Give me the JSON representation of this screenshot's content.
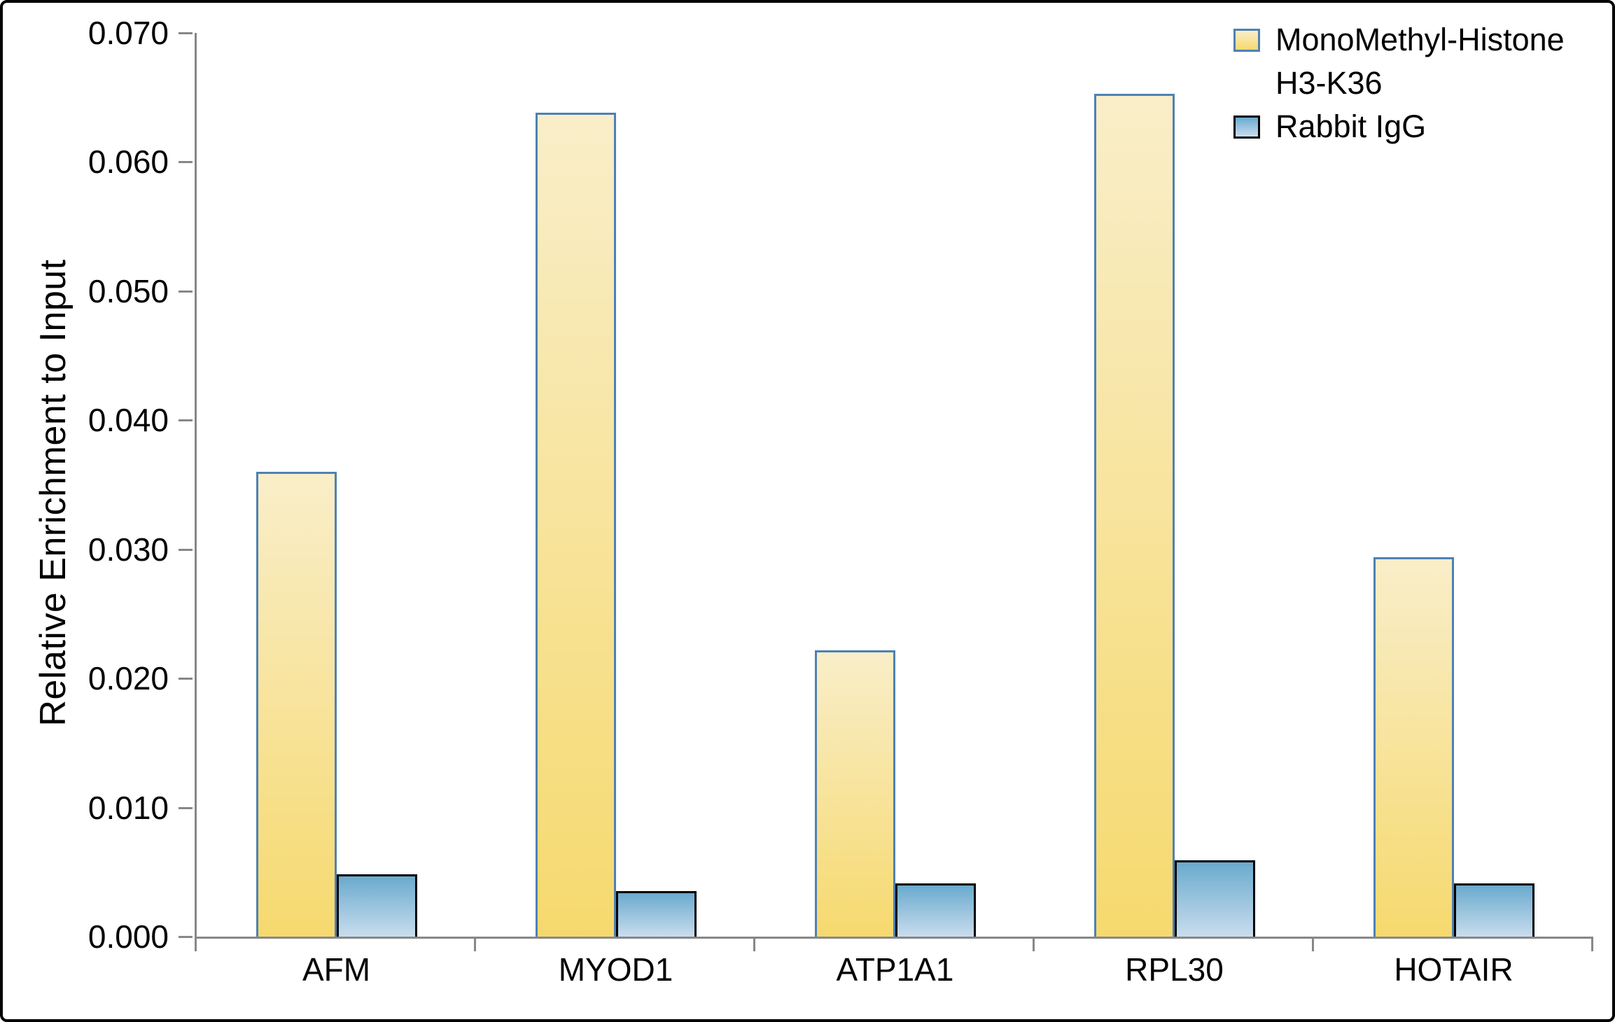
{
  "chart_data": {
    "type": "bar",
    "categories": [
      "AFM",
      "MYOD1",
      "ATP1A1",
      "RPL30",
      "HOTAIR"
    ],
    "series": [
      {
        "name": "MonoMethyl-Histone H3-K36",
        "values": [
          0.036,
          0.0638,
          0.0222,
          0.0653,
          0.0294
        ]
      },
      {
        "name": "Rabbit IgG",
        "values": [
          0.0048,
          0.0035,
          0.0041,
          0.0059,
          0.0041
        ]
      }
    ],
    "ylabel": "Relative Enrichment to Input",
    "xlabel": "",
    "ylim": [
      0,
      0.07
    ],
    "ytick_labels": [
      "0.000",
      "0.010",
      "0.020",
      "0.030",
      "0.040",
      "0.050",
      "0.060",
      "0.070"
    ],
    "grid": false,
    "legend_position": "top-right"
  },
  "legend": {
    "items": [
      {
        "lines": [
          "MonoMethyl-Histone",
          "H3-K36"
        ]
      },
      {
        "lines": [
          "Rabbit IgG"
        ]
      }
    ]
  },
  "colors": {
    "series1_fill_top": "#f9eec9",
    "series1_fill_bottom": "#f6d96e",
    "series1_border": "#4e81b4",
    "series2_fill_top": "#6aaace",
    "series2_fill_bottom": "#c9dded",
    "series2_border": "#000000",
    "axis_line": "#878787",
    "text": "#000000",
    "frame_border": "#000000",
    "background": "#ffffff"
  }
}
